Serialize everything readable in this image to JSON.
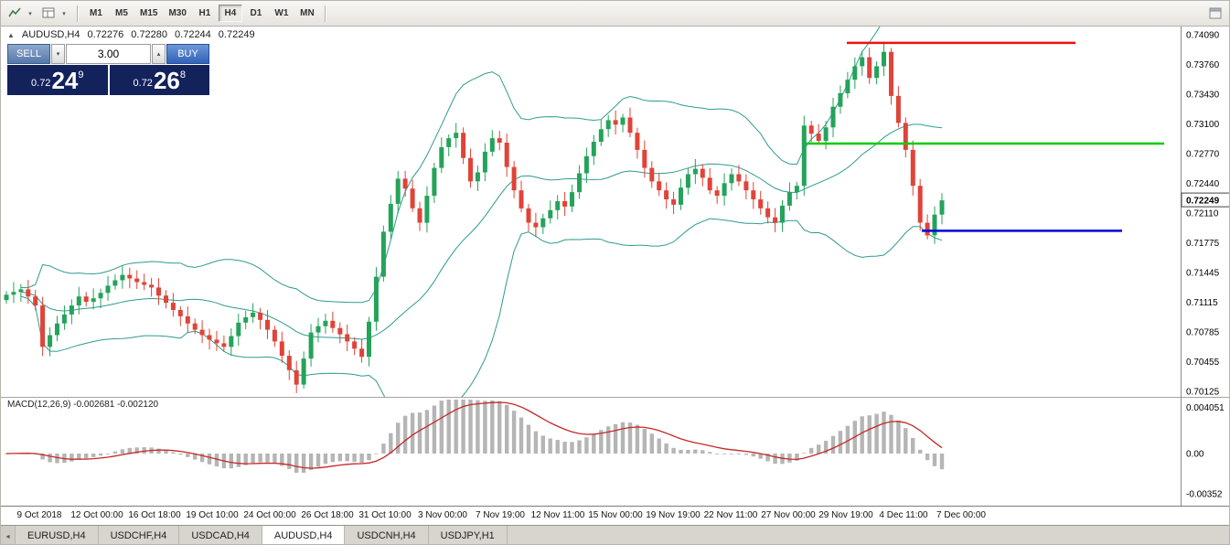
{
  "toolbar": {
    "timeframes": [
      {
        "label": "M1",
        "active": false
      },
      {
        "label": "M5",
        "active": false
      },
      {
        "label": "M15",
        "active": false
      },
      {
        "label": "M30",
        "active": false
      },
      {
        "label": "H1",
        "active": false
      },
      {
        "label": "H4",
        "active": true
      },
      {
        "label": "D1",
        "active": false
      },
      {
        "label": "W1",
        "active": false
      },
      {
        "label": "MN",
        "active": false
      }
    ]
  },
  "chart": {
    "symbol_info": {
      "symbol": "AUDUSD,H4",
      "open": "0.72276",
      "high": "0.72280",
      "low": "0.72244",
      "close": "0.72249"
    },
    "one_click": {
      "sell_label": "SELL",
      "buy_label": "BUY",
      "volume": "3.00",
      "sell_price": {
        "prefix": "0.72",
        "big": "24",
        "pip": "9"
      },
      "buy_price": {
        "prefix": "0.72",
        "big": "26",
        "pip": "8"
      }
    },
    "price_axis_labels": [
      "0.74090",
      "0.73760",
      "0.73430",
      "0.73100",
      "0.72770",
      "0.72440",
      "0.72110",
      "0.71775",
      "0.71445",
      "0.71115",
      "0.70785",
      "0.70455",
      "0.70125"
    ],
    "current_price_label": "0.72249"
  },
  "chart_data": {
    "type": "candlestick",
    "symbol": "AUDUSD",
    "timeframe": "H4",
    "price_range": [
      0.70125,
      0.7409
    ],
    "last_price": 0.72249,
    "candle_colors": {
      "up": "#24a35a",
      "down": "#e04338"
    },
    "closes": [
      0.712,
      0.7123,
      0.7126,
      0.7118,
      0.7108,
      0.7062,
      0.7075,
      0.7088,
      0.7098,
      0.7108,
      0.7118,
      0.7112,
      0.7116,
      0.7122,
      0.713,
      0.7136,
      0.7142,
      0.7138,
      0.7134,
      0.7131,
      0.7128,
      0.7119,
      0.7111,
      0.7103,
      0.7096,
      0.7088,
      0.7081,
      0.7075,
      0.707,
      0.7066,
      0.7062,
      0.7074,
      0.7089,
      0.7095,
      0.71,
      0.7092,
      0.7081,
      0.7068,
      0.7052,
      0.7036,
      0.702,
      0.7049,
      0.7078,
      0.7085,
      0.7091,
      0.7083,
      0.7076,
      0.7068,
      0.706,
      0.7051,
      0.709,
      0.714,
      0.719,
      0.7221,
      0.7249,
      0.7238,
      0.7216,
      0.72,
      0.723,
      0.7261,
      0.7284,
      0.7294,
      0.73,
      0.7272,
      0.7246,
      0.7256,
      0.7279,
      0.7294,
      0.7289,
      0.7262,
      0.7236,
      0.7216,
      0.72,
      0.7195,
      0.7205,
      0.7214,
      0.7224,
      0.7218,
      0.7234,
      0.7255,
      0.7274,
      0.729,
      0.7304,
      0.7314,
      0.7309,
      0.7317,
      0.73,
      0.7281,
      0.7261,
      0.7246,
      0.7236,
      0.7226,
      0.722,
      0.7239,
      0.7254,
      0.726,
      0.725,
      0.7236,
      0.723,
      0.7244,
      0.7254,
      0.7246,
      0.7236,
      0.7226,
      0.7216,
      0.7206,
      0.72,
      0.7219,
      0.7234,
      0.7241,
      0.7308,
      0.7299,
      0.7291,
      0.7306,
      0.7329,
      0.7344,
      0.7359,
      0.7374,
      0.7384,
      0.7361,
      0.7374,
      0.739,
      0.7341,
      0.7311,
      0.7281,
      0.7241,
      0.72,
      0.7186,
      0.7209,
      0.72249
    ],
    "indicators": {
      "bollinger_bands": {
        "period": 20,
        "deviation": 2,
        "color": "#2e9b8f"
      },
      "macd": {
        "fast": 12,
        "slow": 26,
        "signal": 9,
        "main_value": -0.002681,
        "signal_value": -0.00212,
        "histogram_color": "#b5b5b5",
        "signal_color": "#c62828",
        "range": [
          -0.00352,
          0.004051
        ]
      }
    },
    "horizontal_lines": [
      {
        "price": 0.74,
        "color": "#ee1111",
        "start_frac": 0.717,
        "end_frac": 0.911
      },
      {
        "price": 0.7288,
        "color": "#00cc00",
        "start_frac": 0.682,
        "end_frac": 0.986
      },
      {
        "price": 0.7191,
        "color": "#0000dd",
        "start_frac": 0.781,
        "end_frac": 0.95
      }
    ]
  },
  "macd_panel": {
    "label": "MACD(12,26,9) -0.002681 -0.002120",
    "axis_labels": [
      "0.004051",
      "0.00",
      "-0.00352"
    ]
  },
  "time_axis": [
    "9 Oct 2018",
    "12 Oct 00:00",
    "16 Oct 18:00",
    "19 Oct 10:00",
    "24 Oct 00:00",
    "26 Oct 18:00",
    "31 Oct 10:00",
    "3 Nov 00:00",
    "7 Nov 19:00",
    "12 Nov 11:00",
    "15 Nov 00:00",
    "19 Nov 19:00",
    "22 Nov 11:00",
    "27 Nov 00:00",
    "29 Nov 19:00",
    "4 Dec 11:00",
    "7 Dec 00:00"
  ],
  "tabs": [
    {
      "label": "EURUSD,H4",
      "active": false
    },
    {
      "label": "USDCHF,H4",
      "active": false
    },
    {
      "label": "USDCAD,H4",
      "active": false
    },
    {
      "label": "AUDUSD,H4",
      "active": true
    },
    {
      "label": "USDCNH,H4",
      "active": false
    },
    {
      "label": "USDJPY,H1",
      "active": false
    }
  ]
}
